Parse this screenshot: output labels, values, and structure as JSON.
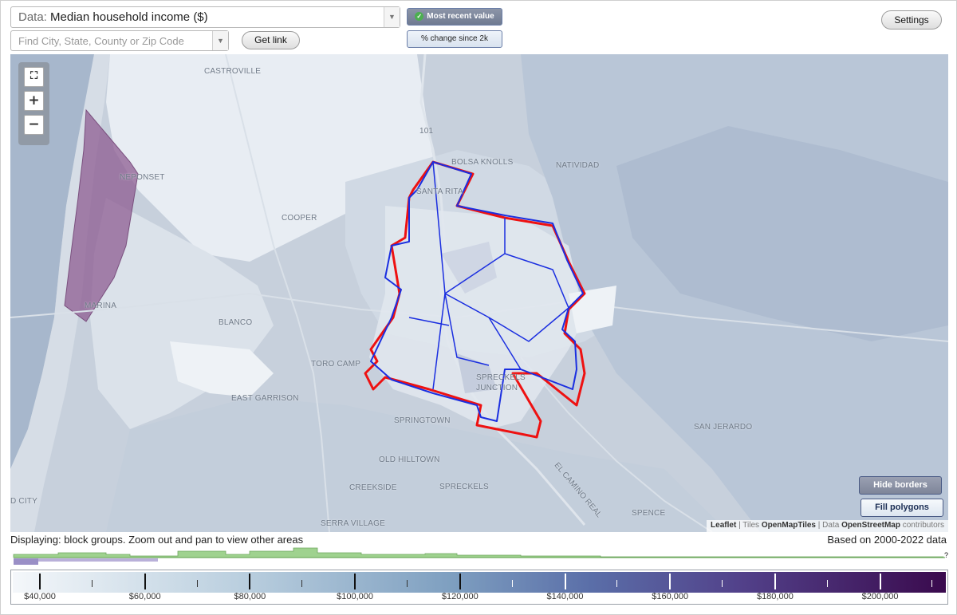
{
  "controls": {
    "data_prefix": "Data:",
    "data_value": "Median household income ($)",
    "search_placeholder": "Find City, State, County or Zip Code",
    "get_link": "Get link",
    "most_recent": "Most recent value",
    "pct_change": "% change since 2k",
    "settings": "Settings"
  },
  "map": {
    "place_labels": [
      "CASTROVILLE",
      "NEPONSET",
      "COOPER",
      "BOLSA KNOLLS",
      "NATIVIDAD",
      "SANTA RITA",
      "MARINA",
      "BLANCO",
      "TORO CAMP",
      "EAST GARRISON",
      "SPRECKELS JUNCTION",
      "SPRINGTOWN",
      "OLD HILLTOWN",
      "CREEKSIDE",
      "SPRECKELS",
      "SERRA VILLAGE",
      "SAN JERARDO",
      "SPENCE",
      "EL CAMINO REAL",
      "101",
      "D CITY"
    ],
    "hide_borders": "Hide borders",
    "fill_polygons": "Fill polygons",
    "attribution": {
      "leaflet": "Leaflet",
      "tiles_prefix": "Tiles",
      "tiles_source": "OpenMapTiles",
      "data_prefix": "Data",
      "data_source": "OpenStreetMap",
      "data_suffix": "contributors"
    }
  },
  "status": {
    "displaying": "Displaying: block groups. Zoom out and pan to view other areas",
    "based_on": "Based on 2000-2022 data"
  },
  "legend": {
    "labels": [
      "$40,000",
      "$60,000",
      "$80,000",
      "$100,000",
      "$120,000",
      "$140,000",
      "$160,000",
      "$180,000",
      "$200,000"
    ],
    "help": "?"
  },
  "colors": {
    "outline_red": "#ee1111",
    "outline_blue": "#1a2ee0",
    "purple_fill": "#8e5c91",
    "histogram_green": "#9fd28f"
  }
}
